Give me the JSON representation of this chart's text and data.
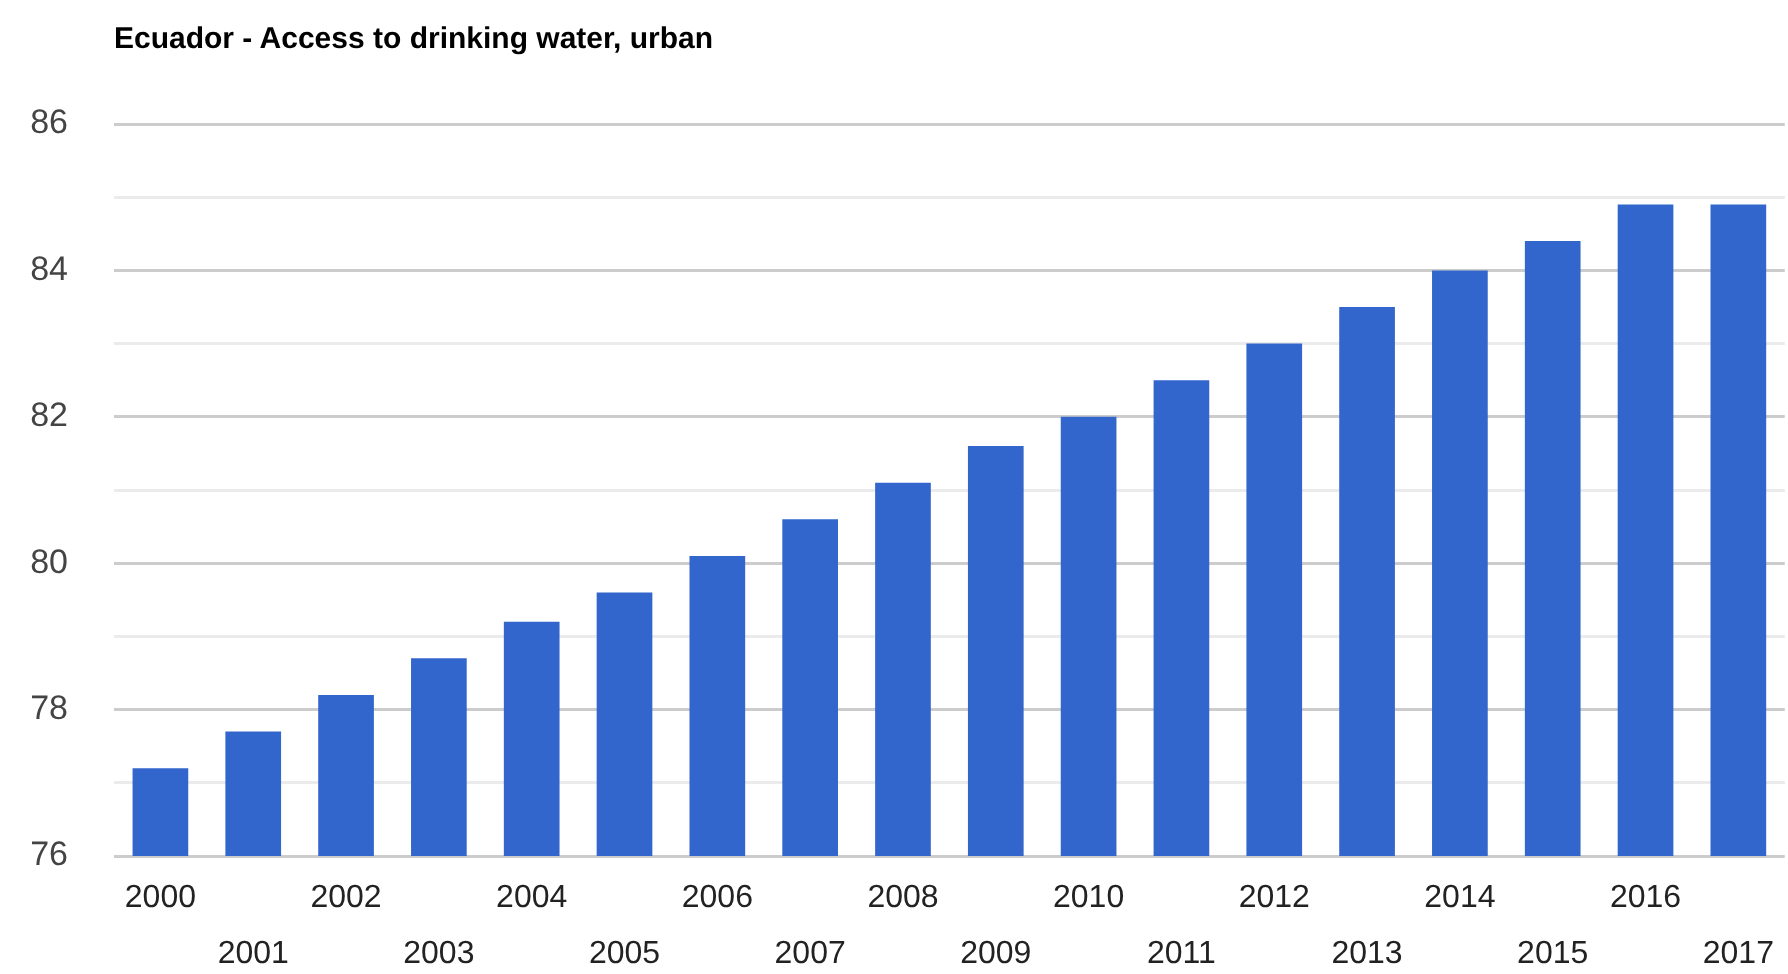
{
  "chart_data": {
    "type": "bar",
    "title": "Ecuador - Access to drinking water, urban",
    "categories": [
      "2000",
      "2001",
      "2002",
      "2003",
      "2004",
      "2005",
      "2006",
      "2007",
      "2008",
      "2009",
      "2010",
      "2011",
      "2012",
      "2013",
      "2014",
      "2015",
      "2016",
      "2017"
    ],
    "values": [
      77.2,
      77.7,
      78.2,
      78.7,
      79.2,
      79.6,
      80.1,
      80.6,
      81.1,
      81.6,
      82.0,
      82.5,
      83.0,
      83.5,
      84.0,
      84.4,
      84.9,
      84.9
    ],
    "color": "#3366cc",
    "ylim": [
      76,
      86
    ],
    "yticks": [
      76,
      {
        "value": 77,
        "label": null
      },
      78,
      {
        "value": 79,
        "label": null
      },
      80,
      {
        "value": 81,
        "label": null
      },
      82,
      {
        "value": 83,
        "label": null
      },
      84,
      {
        "value": 85,
        "label": null
      },
      86
    ],
    "grid": "y"
  }
}
